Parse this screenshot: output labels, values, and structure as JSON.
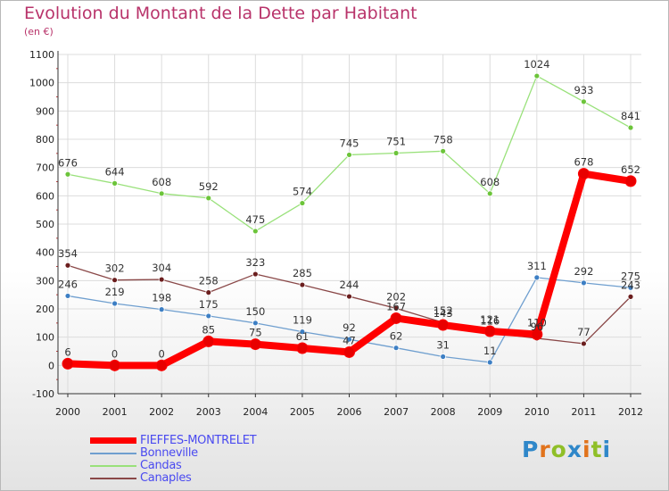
{
  "header": {
    "title": "Evolution du Montant de la Dette par Habitant",
    "unit": "(en €)"
  },
  "logo": {
    "text": "Proxiti"
  },
  "colors": {
    "title": "#b8336a",
    "legend_text": "#4a4af0",
    "grid": "#dcdcdc",
    "axis": "#333333"
  },
  "chart_data": {
    "type": "line",
    "title": "Evolution du Montant de la Dette par Habitant",
    "subtitle": "(en €)",
    "xlabel": "",
    "ylabel": "",
    "ylim": [
      -100,
      1100
    ],
    "yticks": [
      -100,
      0,
      100,
      200,
      300,
      400,
      500,
      600,
      700,
      800,
      900,
      1000,
      1100
    ],
    "x": [
      "2000",
      "2001",
      "2002",
      "2003",
      "2004",
      "2005",
      "2006",
      "2007",
      "2008",
      "2009",
      "2010",
      "2011",
      "2012"
    ],
    "grid": true,
    "legend_position": "bottom-left",
    "series": [
      {
        "name": "FIEFFES-MONTRELET",
        "color": "#ff0000",
        "marker": "#e80000",
        "values": [
          6,
          0,
          0,
          85,
          75,
          61,
          47,
          167,
          143,
          121,
          110,
          678,
          652
        ]
      },
      {
        "name": "Bonneville",
        "color": "#6f9fcf",
        "marker": "#3d7fc4",
        "values": [
          246,
          219,
          198,
          175,
          150,
          119,
          92,
          62,
          31,
          11,
          311,
          292,
          275
        ]
      },
      {
        "name": "Candas",
        "color": "#99e17a",
        "marker": "#6cc43a",
        "values": [
          676,
          644,
          608,
          592,
          475,
          574,
          745,
          751,
          758,
          608,
          1024,
          933,
          841
        ]
      },
      {
        "name": "Canaples",
        "color": "#8a4848",
        "marker": "#6b1e1e",
        "values": [
          354,
          302,
          304,
          258,
          323,
          285,
          244,
          202,
          152,
          116,
          96,
          77,
          243
        ]
      }
    ]
  }
}
